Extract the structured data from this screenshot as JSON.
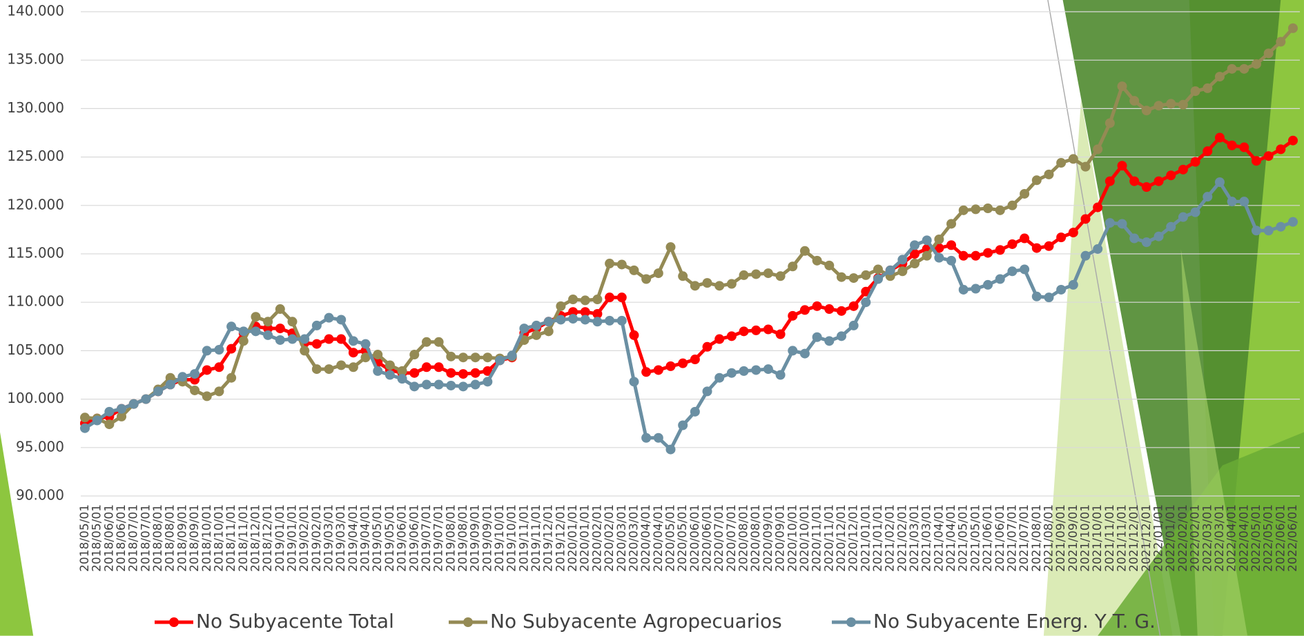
{
  "chart_data": {
    "type": "line",
    "categories": [
      "2018/05/01",
      "2018/05/01",
      "2018/06/01",
      "2018/06/01",
      "2018/07/01",
      "2018/07/01",
      "2018/08/01",
      "2018/08/01",
      "2018/09/01",
      "2018/09/01",
      "2018/10/01",
      "2018/10/01",
      "2018/11/01",
      "2018/11/01",
      "2018/12/01",
      "2018/12/01",
      "2019/01/01",
      "2019/01/01",
      "2019/02/01",
      "2019/02/01",
      "2019/03/01",
      "2019/03/01",
      "2019/04/01",
      "2019/04/01",
      "2019/05/01",
      "2019/05/01",
      "2019/06/01",
      "2019/06/01",
      "2019/07/01",
      "2019/07/01",
      "2019/08/01",
      "2019/08/01",
      "2019/09/01",
      "2019/09/01",
      "2019/10/01",
      "2019/10/01",
      "2019/11/01",
      "2019/11/01",
      "2019/12/01",
      "2019/12/01",
      "2020/01/01",
      "2020/01/01",
      "2020/02/01",
      "2020/02/01",
      "2020/03/01",
      "2020/03/01",
      "2020/04/01",
      "2020/04/01",
      "2020/05/01",
      "2020/05/01",
      "2020/06/01",
      "2020/06/01",
      "2020/07/01",
      "2020/07/01",
      "2020/08/01",
      "2020/08/01",
      "2020/09/01",
      "2020/09/01",
      "2020/10/01",
      "2020/10/01",
      "2020/11/01",
      "2020/11/01",
      "2020/12/01",
      "2020/12/01",
      "2021/01/01",
      "2021/01/01",
      "2021/02/01",
      "2021/02/01",
      "2021/03/01",
      "2021/03/01",
      "2021/04/01",
      "2021/04/01",
      "2021/05/01",
      "2021/05/01",
      "2021/06/01",
      "2021/06/01",
      "2021/07/01",
      "2021/07/01",
      "2021/08/01",
      "2021/08/01",
      "2021/09/01",
      "2021/09/01",
      "2021/10/01",
      "2021/10/01",
      "2021/11/01",
      "2021/11/01",
      "2021/12/01",
      "2021/12/01",
      "2022/01/01",
      "2022/01/01",
      "2022/02/01",
      "2022/02/01",
      "2022/03/01",
      "2022/03/01",
      "2022/04/01",
      "2022/04/01",
      "2022/05/01",
      "2022/05/01",
      "2022/06/01",
      "2022/06/01"
    ],
    "series": [
      {
        "name": "No Subyacente Total",
        "color": "#ff0000",
        "values": [
          97.5,
          98,
          98.2,
          99,
          99.5,
          100,
          100.8,
          101.5,
          102,
          102,
          103,
          103.3,
          105.2,
          106.8,
          107.5,
          107.3,
          107.3,
          106.8,
          105.8,
          105.7,
          106.2,
          106.2,
          104.8,
          105,
          103.8,
          103,
          102.7,
          102.7,
          103.3,
          103.3,
          102.7,
          102.6,
          102.7,
          102.9,
          104,
          104.3,
          106.8,
          107.3,
          108,
          108.6,
          109,
          109,
          108.8,
          110.5,
          110.5,
          106.6,
          102.8,
          103,
          103.4,
          103.7,
          104.1,
          105.4,
          106.2,
          106.5,
          107,
          107.1,
          107.2,
          106.7,
          108.6,
          109.2,
          109.6,
          109.3,
          109.1,
          109.6,
          111.1,
          112.5,
          113.3,
          114,
          115,
          115.5,
          115.6,
          115.9,
          114.8,
          114.8,
          115.1,
          115.4,
          116,
          116.6,
          115.6,
          115.8,
          116.7,
          117.2,
          118.6,
          119.8,
          122.5,
          124.1,
          122.5,
          121.9,
          122.5,
          123.1,
          123.7,
          124.5,
          125.6,
          127,
          126.2,
          126,
          124.6,
          125.1,
          125.8,
          126.7
        ]
      },
      {
        "name": "No Subyacente Agropecuarios",
        "color": "#948a54",
        "values": [
          98.1,
          98,
          97.4,
          98.2,
          99.5,
          100,
          101,
          102.2,
          101.8,
          100.9,
          100.3,
          100.8,
          102.2,
          106,
          108.5,
          108,
          109.3,
          108,
          105,
          103.1,
          103.1,
          103.5,
          103.3,
          104.3,
          104.6,
          103.5,
          102.9,
          104.6,
          105.9,
          105.9,
          104.4,
          104.3,
          104.3,
          104.3,
          104.2,
          104.4,
          106.1,
          106.6,
          107,
          109.6,
          110.3,
          110.2,
          110.3,
          114,
          113.9,
          113.3,
          112.4,
          113,
          115.7,
          112.7,
          111.7,
          112,
          111.7,
          111.9,
          112.8,
          112.9,
          113,
          112.7,
          113.7,
          115.3,
          114.3,
          113.8,
          112.6,
          112.5,
          112.8,
          113.4,
          112.7,
          113.2,
          114,
          114.8,
          116.5,
          118.1,
          119.5,
          119.6,
          119.7,
          119.5,
          120,
          121.2,
          122.6,
          123.2,
          124.4,
          124.8,
          124,
          125.8,
          128.5,
          132.3,
          130.8,
          129.8,
          130.3,
          130.5,
          130.4,
          131.8,
          132.1,
          133.3,
          134.1,
          134.1,
          134.6,
          135.7,
          136.9,
          138.3
        ]
      },
      {
        "name": "No Subyacente Energ. Y T. G.",
        "color": "#6a8fa3",
        "values": [
          97,
          97.8,
          98.7,
          99,
          99.5,
          100,
          100.8,
          101.5,
          102.3,
          102.6,
          105,
          105.1,
          107.5,
          107,
          107,
          106.6,
          106.1,
          106.2,
          106.2,
          107.6,
          108.4,
          108.2,
          106,
          105.7,
          102.9,
          102.5,
          102.1,
          101.3,
          101.5,
          101.5,
          101.4,
          101.3,
          101.5,
          101.8,
          104,
          104.5,
          107.3,
          107.6,
          108,
          108.2,
          108.3,
          108.2,
          108,
          108.1,
          108.1,
          101.8,
          96,
          96,
          94.8,
          97.3,
          98.7,
          100.8,
          102.2,
          102.7,
          102.9,
          103,
          103.1,
          102.5,
          105,
          104.7,
          106.4,
          106,
          106.5,
          107.6,
          110,
          112.4,
          113.3,
          114.4,
          115.9,
          116.4,
          114.6,
          114.3,
          111.3,
          111.4,
          111.8,
          112.4,
          113.2,
          113.4,
          110.6,
          110.5,
          111.3,
          111.8,
          114.8,
          115.5,
          118.2,
          118.1,
          116.6,
          116.2,
          116.8,
          117.8,
          118.8,
          119.3,
          120.9,
          122.4,
          120.4,
          120.4,
          117.4,
          117.4,
          117.8,
          118.3
        ]
      }
    ],
    "ylim": [
      90,
      140
    ],
    "yticks": [
      {
        "value": 90,
        "label": "90.000"
      },
      {
        "value": 95,
        "label": "95.000"
      },
      {
        "value": 100,
        "label": "100.000"
      },
      {
        "value": 105,
        "label": "105.000"
      },
      {
        "value": 110,
        "label": "110.000"
      },
      {
        "value": 115,
        "label": "115.000"
      },
      {
        "value": 120,
        "label": "120.000"
      },
      {
        "value": 125,
        "label": "125.000"
      },
      {
        "value": 130,
        "label": "130.000"
      },
      {
        "value": 135,
        "label": "135.000"
      },
      {
        "value": 140,
        "label": "140.000"
      }
    ],
    "grid": true,
    "legend": "bottom"
  }
}
